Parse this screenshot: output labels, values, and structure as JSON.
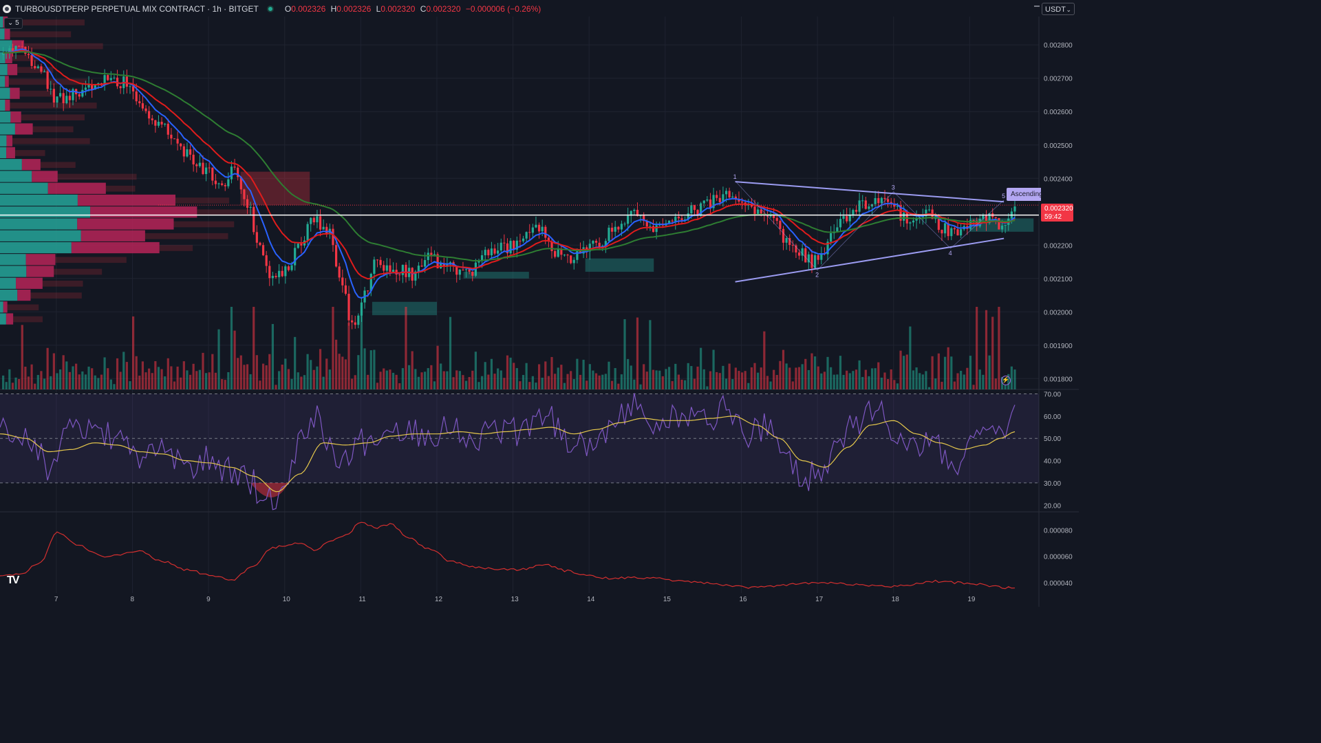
{
  "header": {
    "symbol_title": "TURBOUSDTPERP PERPETUAL MIX CONTRACT · 1h · BITGET",
    "ohlc": {
      "o_label": "O",
      "o": "0.002326",
      "h_label": "H",
      "h": "0.002326",
      "l_label": "L",
      "l": "0.002320",
      "c_label": "C",
      "c": "0.002320",
      "change": "−0.000006 (−0.26%)"
    },
    "indicator_count": "5",
    "currency": "USDT"
  },
  "current_price": {
    "value": "0.002320",
    "countdown": "59:42"
  },
  "pattern": {
    "label": "Ascending",
    "points": [
      "1",
      "2",
      "3",
      "4",
      "5"
    ]
  },
  "colors": {
    "background": "#131722",
    "up": "#22ab94",
    "down": "#f23645",
    "ema_fast": "#2962ff",
    "ema_mid": "#e01c1c",
    "ema_slow": "#2e7d32",
    "rsi": "#7e57c2",
    "rsi_ma": "#e6c84c",
    "pattern": "#9c9cf2",
    "lower_indicator": "#d32f2f"
  },
  "icons": [
    "symbol-icon",
    "chevron-down-icon",
    "flash-icon",
    "tradingview-logo"
  ],
  "chart_data": [
    {
      "type": "candlestick",
      "name": "price",
      "y_ticks": [
        "0.002800",
        "0.002700",
        "0.002600",
        "0.002500",
        "0.002400",
        "0.002200",
        "0.002100",
        "0.002000",
        "0.001900",
        "0.001800"
      ],
      "ylim": [
        0.00178,
        0.002885
      ],
      "x_ticks": [
        "7",
        "8",
        "9",
        "10",
        "11",
        "12",
        "13",
        "14",
        "15",
        "16",
        "17",
        "18",
        "19"
      ],
      "x_tick_days": [
        7,
        8,
        9,
        10,
        11,
        12,
        13,
        14,
        15,
        16,
        17,
        18,
        19
      ],
      "xlim_days": [
        6.26,
        19.91
      ],
      "close_anchors": [
        [
          6.27,
          0.00277
        ],
        [
          6.5,
          0.0028
        ],
        [
          6.75,
          0.00273
        ],
        [
          7.0,
          0.00264
        ],
        [
          7.3,
          0.00266
        ],
        [
          7.6,
          0.00269
        ],
        [
          7.85,
          0.00269
        ],
        [
          8.1,
          0.00262
        ],
        [
          8.4,
          0.00255
        ],
        [
          8.7,
          0.00247
        ],
        [
          8.95,
          0.00243
        ],
        [
          9.15,
          0.00238
        ],
        [
          9.35,
          0.00243
        ],
        [
          9.5,
          0.00233
        ],
        [
          9.65,
          0.00222
        ],
        [
          9.8,
          0.0021
        ],
        [
          10.0,
          0.00212
        ],
        [
          10.2,
          0.0022
        ],
        [
          10.35,
          0.00229
        ],
        [
          10.55,
          0.00225
        ],
        [
          10.75,
          0.00208
        ],
        [
          10.9,
          0.00195
        ],
        [
          11.05,
          0.00205
        ],
        [
          11.2,
          0.00215
        ],
        [
          11.45,
          0.00213
        ],
        [
          11.7,
          0.00211
        ],
        [
          11.9,
          0.00216
        ],
        [
          12.15,
          0.00213
        ],
        [
          12.4,
          0.00211
        ],
        [
          12.6,
          0.00217
        ],
        [
          12.85,
          0.00219
        ],
        [
          13.1,
          0.0022
        ],
        [
          13.3,
          0.00227
        ],
        [
          13.5,
          0.00219
        ],
        [
          13.7,
          0.00215
        ],
        [
          13.85,
          0.00218
        ],
        [
          14.1,
          0.0022
        ],
        [
          14.35,
          0.00226
        ],
        [
          14.6,
          0.00229
        ],
        [
          14.85,
          0.00224
        ],
        [
          15.05,
          0.00226
        ],
        [
          15.35,
          0.0023
        ],
        [
          15.6,
          0.00233
        ],
        [
          15.85,
          0.00236
        ],
        [
          16.0,
          0.00231
        ],
        [
          16.2,
          0.0023
        ],
        [
          16.4,
          0.00229
        ],
        [
          16.55,
          0.00222
        ],
        [
          16.75,
          0.00218
        ],
        [
          16.95,
          0.00215
        ],
        [
          17.1,
          0.00219
        ],
        [
          17.3,
          0.00228
        ],
        [
          17.55,
          0.00232
        ],
        [
          17.8,
          0.00234
        ],
        [
          18.0,
          0.00231
        ],
        [
          18.2,
          0.00227
        ],
        [
          18.45,
          0.0023
        ],
        [
          18.65,
          0.00225
        ],
        [
          18.85,
          0.00223
        ],
        [
          19.05,
          0.00226
        ],
        [
          19.25,
          0.00228
        ],
        [
          19.45,
          0.00226
        ],
        [
          19.6,
          0.00232
        ]
      ],
      "current_price": 0.00232,
      "horizontal_line": 0.00229,
      "pattern_lines": [
        {
          "from": [
            15.92,
            0.00239
          ],
          "to": [
            19.45,
            0.00233
          ]
        },
        {
          "from": [
            15.92,
            0.00209
          ],
          "to": [
            19.45,
            0.00222
          ]
        }
      ],
      "pattern_points": [
        {
          "label": "1",
          "day": 15.92,
          "price": 0.002392
        },
        {
          "label": "2",
          "day": 17.0,
          "price": 0.002125
        },
        {
          "label": "3",
          "day": 18.0,
          "price": 0.00236
        },
        {
          "label": "4",
          "day": 18.75,
          "price": 0.00219
        },
        {
          "label": "5",
          "day": 19.45,
          "price": 0.002335
        }
      ]
    },
    {
      "type": "line",
      "name": "rsi",
      "y_ticks": [
        "70.00",
        "60.00",
        "50.00",
        "40.00",
        "30.00",
        "20.00"
      ],
      "ylim": [
        17,
        72
      ],
      "bands": [
        30,
        70
      ],
      "midline": 50,
      "anchors": [
        [
          6.27,
          55
        ],
        [
          6.6,
          50
        ],
        [
          6.9,
          38
        ],
        [
          7.2,
          52
        ],
        [
          7.5,
          55
        ],
        [
          7.8,
          48
        ],
        [
          8.1,
          42
        ],
        [
          8.4,
          45
        ],
        [
          8.7,
          36
        ],
        [
          9.0,
          40
        ],
        [
          9.3,
          35
        ],
        [
          9.5,
          33
        ],
        [
          9.7,
          25
        ],
        [
          9.85,
          22
        ],
        [
          10.0,
          28
        ],
        [
          10.2,
          50
        ],
        [
          10.4,
          62
        ],
        [
          10.6,
          45
        ],
        [
          10.8,
          42
        ],
        [
          11.0,
          48
        ],
        [
          11.3,
          52
        ],
        [
          11.6,
          55
        ],
        [
          11.9,
          52
        ],
        [
          12.2,
          56
        ],
        [
          12.5,
          50
        ],
        [
          12.8,
          55
        ],
        [
          13.1,
          52
        ],
        [
          13.4,
          63
        ],
        [
          13.7,
          50
        ],
        [
          14.0,
          48
        ],
        [
          14.3,
          56
        ],
        [
          14.6,
          64
        ],
        [
          14.9,
          56
        ],
        [
          15.2,
          60
        ],
        [
          15.5,
          58
        ],
        [
          15.8,
          64
        ],
        [
          16.1,
          52
        ],
        [
          16.4,
          55
        ],
        [
          16.6,
          38
        ],
        [
          16.9,
          33
        ],
        [
          17.2,
          42
        ],
        [
          17.5,
          58
        ],
        [
          17.8,
          62
        ],
        [
          18.0,
          55
        ],
        [
          18.2,
          44
        ],
        [
          18.5,
          50
        ],
        [
          18.7,
          42
        ],
        [
          18.9,
          40
        ],
        [
          19.1,
          50
        ],
        [
          19.4,
          52
        ],
        [
          19.6,
          60
        ]
      ],
      "ma_anchors": [
        [
          6.27,
          52
        ],
        [
          6.6,
          50
        ],
        [
          6.9,
          44
        ],
        [
          7.2,
          45
        ],
        [
          7.5,
          48
        ],
        [
          7.8,
          47
        ],
        [
          8.1,
          44
        ],
        [
          8.4,
          43
        ],
        [
          8.7,
          40
        ],
        [
          9.0,
          39
        ],
        [
          9.3,
          37
        ],
        [
          9.6,
          33
        ],
        [
          9.9,
          26
        ],
        [
          10.2,
          34
        ],
        [
          10.5,
          48
        ],
        [
          10.8,
          47
        ],
        [
          11.1,
          48
        ],
        [
          11.4,
          51
        ],
        [
          11.7,
          52
        ],
        [
          12.0,
          52
        ],
        [
          12.3,
          53
        ],
        [
          12.6,
          52
        ],
        [
          12.9,
          53
        ],
        [
          13.2,
          54
        ],
        [
          13.5,
          55
        ],
        [
          13.8,
          52
        ],
        [
          14.1,
          54
        ],
        [
          14.4,
          57
        ],
        [
          14.7,
          59
        ],
        [
          15.0,
          58
        ],
        [
          15.3,
          58
        ],
        [
          15.6,
          59
        ],
        [
          15.9,
          60
        ],
        [
          16.2,
          56
        ],
        [
          16.5,
          50
        ],
        [
          16.8,
          40
        ],
        [
          17.1,
          37
        ],
        [
          17.4,
          46
        ],
        [
          17.7,
          56
        ],
        [
          18.0,
          58
        ],
        [
          18.3,
          52
        ],
        [
          18.6,
          48
        ],
        [
          18.9,
          45
        ],
        [
          19.2,
          47
        ],
        [
          19.4,
          50
        ],
        [
          19.6,
          53
        ]
      ]
    },
    {
      "type": "line",
      "name": "lower-indicator",
      "y_ticks": [
        "0.000080",
        "0.000060",
        "0.000040"
      ],
      "ylim": [
        3.2e-05,
        9.4e-05
      ],
      "anchors": [
        [
          6.27,
          4.5e-05
        ],
        [
          6.5,
          4.6e-05
        ],
        [
          6.8,
          5.5e-05
        ],
        [
          7.0,
          7.8e-05
        ],
        [
          7.3,
          6.8e-05
        ],
        [
          7.6,
          6e-05
        ],
        [
          7.9,
          6.2e-05
        ],
        [
          8.1,
          6.4e-05
        ],
        [
          8.4,
          5.6e-05
        ],
        [
          8.7,
          5e-05
        ],
        [
          9.0,
          4.6e-05
        ],
        [
          9.3,
          4.2e-05
        ],
        [
          9.6,
          5.2e-05
        ],
        [
          9.8,
          6.6e-05
        ],
        [
          10.0,
          6.8e-05
        ],
        [
          10.2,
          7e-05
        ],
        [
          10.4,
          6.5e-05
        ],
        [
          10.6,
          7.2e-05
        ],
        [
          10.8,
          7.6e-05
        ],
        [
          11.0,
          8.6e-05
        ],
        [
          11.2,
          8.2e-05
        ],
        [
          11.4,
          8.5e-05
        ],
        [
          11.6,
          7.5e-05
        ],
        [
          11.9,
          6.6e-05
        ],
        [
          12.2,
          5.6e-05
        ],
        [
          12.5,
          5.2e-05
        ],
        [
          12.8,
          5e-05
        ],
        [
          13.1,
          5e-05
        ],
        [
          13.4,
          5.4e-05
        ],
        [
          13.7,
          4.9e-05
        ],
        [
          14.0,
          4.5e-05
        ],
        [
          14.3,
          4.3e-05
        ],
        [
          14.6,
          4.4e-05
        ],
        [
          14.9,
          4.3e-05
        ],
        [
          15.2,
          4.1e-05
        ],
        [
          15.5,
          4e-05
        ],
        [
          15.8,
          3.8e-05
        ],
        [
          16.1,
          3.6e-05
        ],
        [
          16.4,
          3.7e-05
        ],
        [
          16.7,
          3.9e-05
        ],
        [
          17.0,
          4e-05
        ],
        [
          17.3,
          3.9e-05
        ],
        [
          17.6,
          3.8e-05
        ],
        [
          17.9,
          3.7e-05
        ],
        [
          18.2,
          3.8e-05
        ],
        [
          18.5,
          4.1e-05
        ],
        [
          18.8,
          4e-05
        ],
        [
          19.1,
          3.9e-05
        ],
        [
          19.3,
          3.7e-05
        ],
        [
          19.5,
          3.6e-05
        ],
        [
          19.6,
          3.5e-05
        ]
      ]
    }
  ]
}
